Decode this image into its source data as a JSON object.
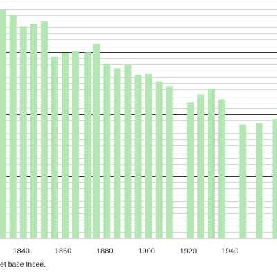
{
  "chart_data": {
    "type": "bar",
    "title": "",
    "xlabel": "",
    "ylabel": "",
    "x_ticks": [
      "1840",
      "1860",
      "1880",
      "1900",
      "1920",
      "1940"
    ],
    "source_note": "et base Insee.",
    "colors": {
      "bar": "#b3e6b3",
      "major_grid": "#333333",
      "minor_grid": "#c8c8c8"
    },
    "grid": true,
    "legend": "none",
    "y_range": [
      0,
      1
    ],
    "x_range": [
      1829.8,
      1962.5
    ],
    "bars": [
      {
        "year": 1831,
        "value": 0.956
      },
      {
        "year": 1836,
        "value": 0.936
      },
      {
        "year": 1841,
        "value": 0.889
      },
      {
        "year": 1846,
        "value": 0.9
      },
      {
        "year": 1851,
        "value": 0.911
      },
      {
        "year": 1856,
        "value": 0.761
      },
      {
        "year": 1861,
        "value": 0.778
      },
      {
        "year": 1866,
        "value": 0.786
      },
      {
        "year": 1872,
        "value": 0.781
      },
      {
        "year": 1876,
        "value": 0.814
      },
      {
        "year": 1881,
        "value": 0.733
      },
      {
        "year": 1886,
        "value": 0.714
      },
      {
        "year": 1891,
        "value": 0.728
      },
      {
        "year": 1896,
        "value": 0.686
      },
      {
        "year": 1901,
        "value": 0.689
      },
      {
        "year": 1906,
        "value": 0.658
      },
      {
        "year": 1911,
        "value": 0.639
      },
      {
        "year": 1921,
        "value": 0.569
      },
      {
        "year": 1926,
        "value": 0.603
      },
      {
        "year": 1931,
        "value": 0.628
      },
      {
        "year": 1936,
        "value": 0.583
      },
      {
        "year": 1946,
        "value": 0.478
      },
      {
        "year": 1954,
        "value": 0.483
      },
      {
        "year": 1962,
        "value": 0.5
      }
    ]
  }
}
